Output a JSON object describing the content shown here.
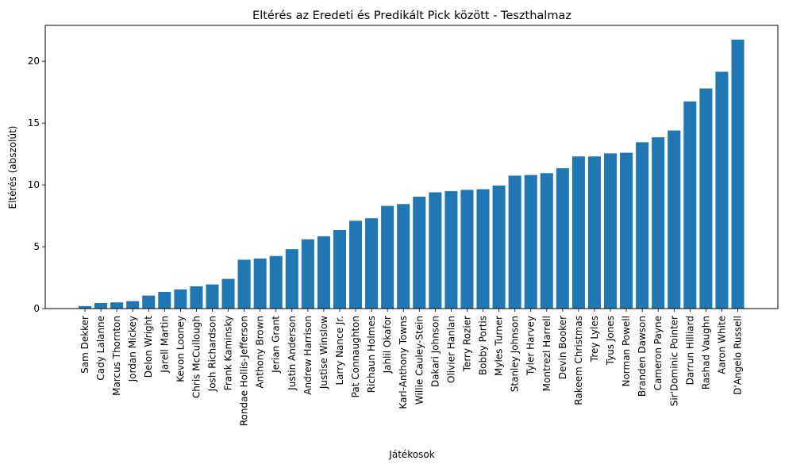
{
  "chart_data": {
    "type": "bar",
    "title": "Eltérés az Eredeti és Predikált Pick között - Teszthalmaz",
    "xlabel": "Játékosok",
    "ylabel": "Eltérés (abszolút)",
    "ylim": [
      0,
      22.9
    ],
    "yticks": [
      0,
      5,
      10,
      15,
      20
    ],
    "grid": false,
    "bar_color": "#1f77b4",
    "categories": [
      "Sam Dekker",
      "Cady Lalanne",
      "Marcus Thornton",
      "Jordan Mickey",
      "Delon Wright",
      "Jarell Martin",
      "Kevon Looney",
      "Chris McCullough",
      "Josh Richardson",
      "Frank Kaminsky",
      "Rondae Hollis-Jefferson",
      "Anthony Brown",
      "Jerian Grant",
      "Justin Anderson",
      "Andrew Harrison",
      "Justise Winslow",
      "Larry Nance Jr.",
      "Pat Connaughton",
      "Richaun Holmes",
      "Jahlil Okafor",
      "Karl-Anthony Towns",
      "Willie Cauley-Stein",
      "Dakari Johnson",
      "Olivier Hanlan",
      "Terry Rozier",
      "Bobby Portis",
      "Myles Turner",
      "Stanley Johnson",
      "Tyler Harvey",
      "Montrezl Harrell",
      "Devin Booker",
      "Rakeem Christmas",
      "Trey Lyles",
      "Tyus Jones",
      "Norman Powell",
      "Branden Dawson",
      "Cameron Payne",
      "Sir'Dominic Pointer",
      "Darrun Hilliard",
      "Rashad Vaughn",
      "Aaron White",
      "D'Angelo Russell"
    ],
    "values": [
      0.2,
      0.45,
      0.5,
      0.6,
      1.05,
      1.35,
      1.55,
      1.8,
      1.95,
      2.4,
      3.95,
      4.05,
      4.25,
      4.8,
      5.6,
      5.85,
      6.35,
      7.1,
      7.3,
      8.3,
      8.45,
      9.05,
      9.4,
      9.5,
      9.6,
      9.65,
      9.95,
      10.75,
      10.8,
      10.95,
      11.35,
      12.3,
      12.3,
      12.55,
      12.6,
      13.45,
      13.85,
      14.4,
      16.75,
      17.8,
      19.15,
      21.75
    ]
  }
}
